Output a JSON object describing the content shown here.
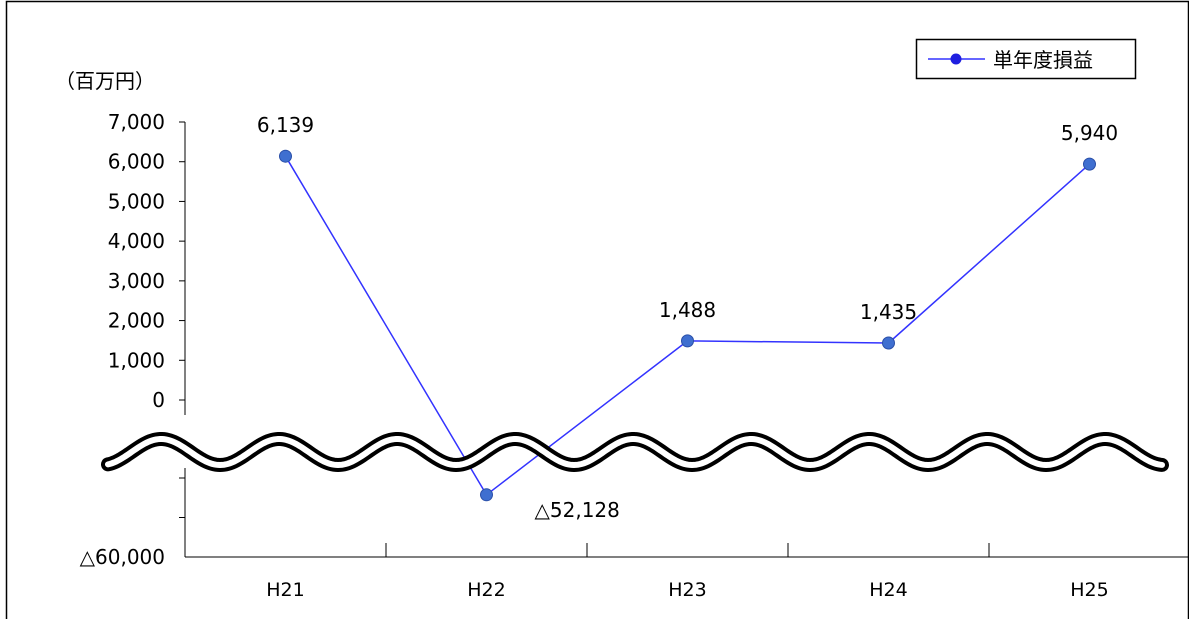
{
  "chart_data": {
    "type": "line",
    "unit_label": "（百万円）",
    "categories": [
      "H21",
      "H22",
      "H23",
      "H24",
      "H25"
    ],
    "series": [
      {
        "name": "単年度損益",
        "color": "#3333ff",
        "marker_color": "#3f6fd0",
        "values": [
          6139,
          -52128,
          1488,
          1435,
          5940
        ],
        "data_labels": [
          "6,139",
          "△52,128",
          "1,488",
          "1,435",
          "5,940"
        ]
      }
    ],
    "y_ticks_upper": [
      "7,000",
      "6,000",
      "5,000",
      "4,000",
      "3,000",
      "2,000",
      "1,000",
      "0"
    ],
    "y_tick_lower": "△60,000",
    "ylim_upper": [
      0,
      7000
    ],
    "ylim_lower": [
      -60000,
      -50000
    ],
    "axis_break": true,
    "legend_position": "top-right",
    "grid": false
  }
}
